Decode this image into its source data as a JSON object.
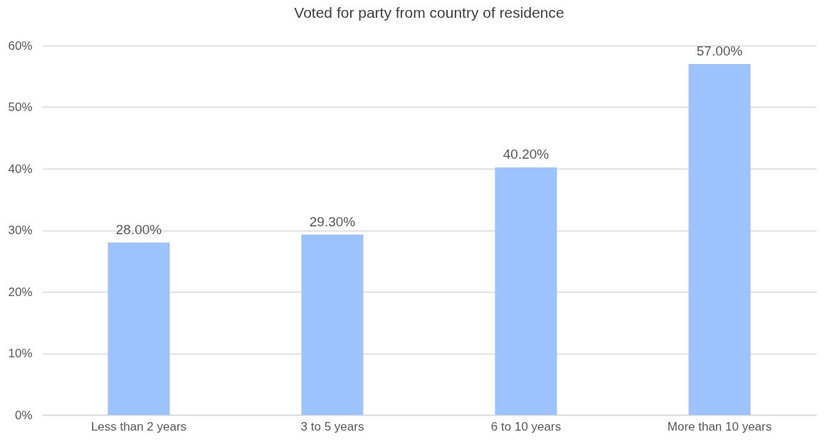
{
  "chart_data": {
    "type": "bar",
    "title": "Voted for  party from country of residence",
    "categories": [
      "Less than 2 years",
      "3 to 5 years",
      "6 to 10 years",
      "More than 10 years"
    ],
    "values": [
      28,
      29.3,
      40.2,
      57
    ],
    "value_labels": [
      "28.00%",
      "29.30%",
      "40.20%",
      "57.00%"
    ],
    "color": "#9dc3ff",
    "ylim": [
      0,
      60
    ],
    "yticks": [
      {
        "value": 0,
        "label": "0%"
      },
      {
        "value": 10,
        "label": "10%"
      },
      {
        "value": 20,
        "label": "20%"
      },
      {
        "value": 30,
        "label": "30%"
      },
      {
        "value": 40,
        "label": "40%"
      },
      {
        "value": 50,
        "label": "50%"
      },
      {
        "value": 60,
        "label": "60%"
      }
    ],
    "grid": "y"
  }
}
